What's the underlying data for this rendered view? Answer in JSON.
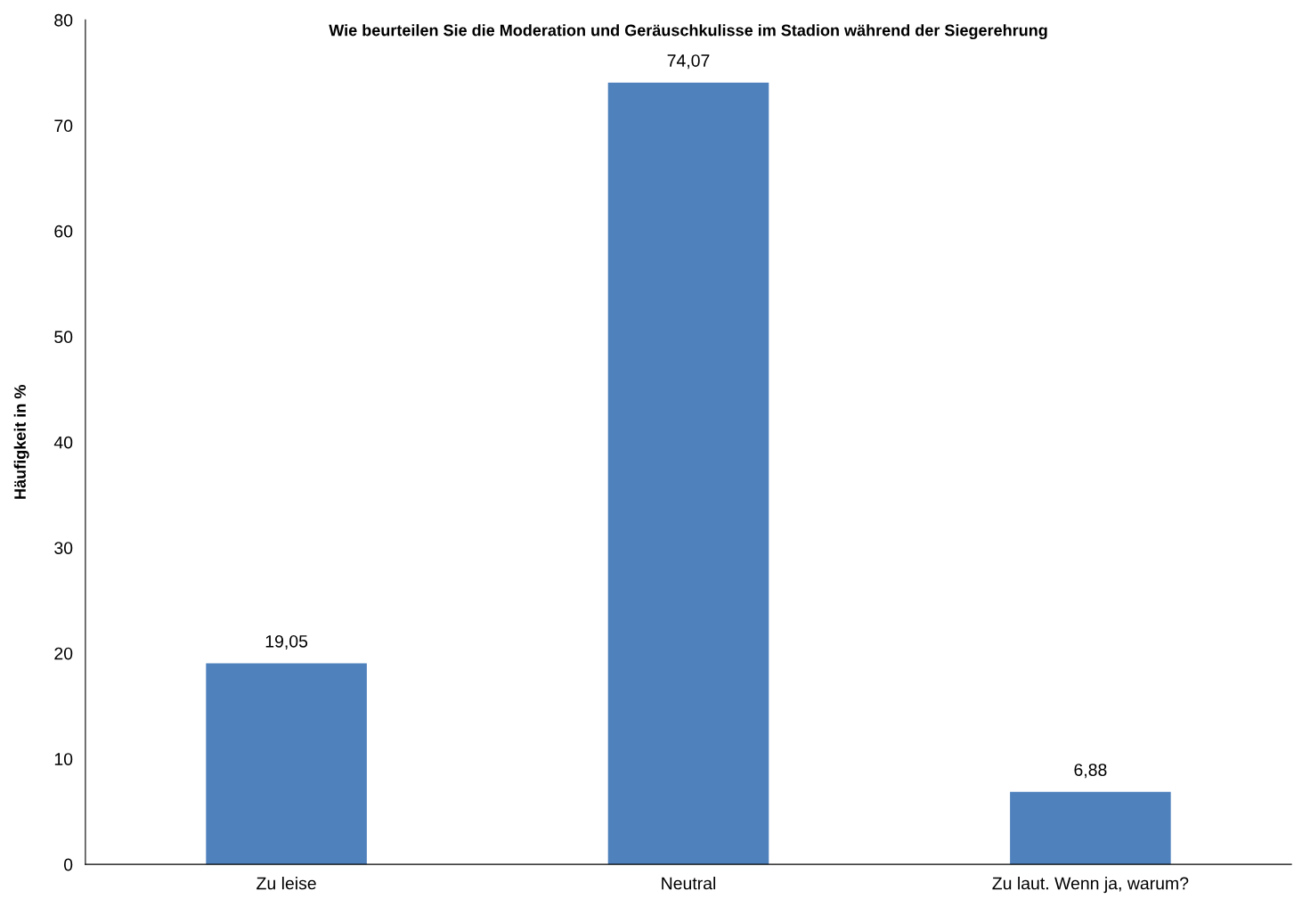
{
  "chart_data": {
    "type": "bar",
    "title": "Wie beurteilen Sie die Moderation und Geräuschkulisse im Stadion während der Siegerehrung",
    "ylabel": "Häufigkeit in %",
    "categories": [
      "Zu leise",
      "Neutral",
      "Zu laut. Wenn ja, warum?"
    ],
    "values": [
      19.05,
      74.07,
      6.88
    ],
    "value_labels": [
      "19,05",
      "74,07",
      "6,88"
    ],
    "color": "#4f81bd",
    "ylim": [
      0,
      80
    ],
    "yticks": [
      0,
      10,
      20,
      30,
      40,
      50,
      60,
      70,
      80
    ],
    "grid": false
  }
}
